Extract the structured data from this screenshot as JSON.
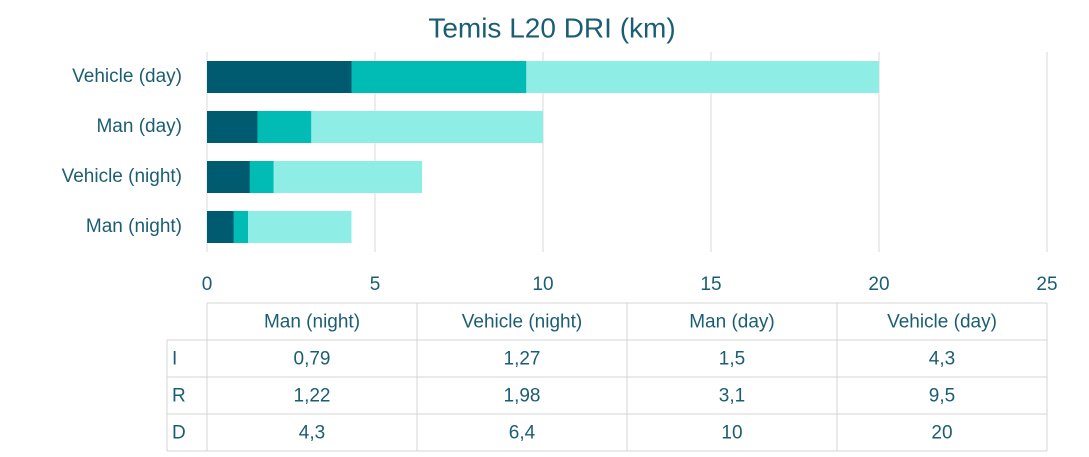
{
  "chart_data": {
    "type": "bar",
    "orientation": "horizontal",
    "overlap": true,
    "title": "Temis L20 DRI (km)",
    "categories": [
      "Man (night)",
      "Vehicle (night)",
      "Man (day)",
      "Vehicle (day)"
    ],
    "series": [
      {
        "name": "I",
        "color": "#005a70",
        "values": [
          0.79,
          1.27,
          1.5,
          4.3
        ],
        "value_labels": [
          "0,79",
          "1,27",
          "1,5",
          "4,3"
        ]
      },
      {
        "name": "R",
        "color": "#00bcb4",
        "values": [
          1.22,
          1.98,
          3.1,
          9.5
        ],
        "value_labels": [
          "1,22",
          "1,98",
          "3,1",
          "9,5"
        ]
      },
      {
        "name": "D",
        "color": "#8eede5",
        "values": [
          4.3,
          6.4,
          10,
          20
        ],
        "value_labels": [
          "4,3",
          "6,4",
          "10",
          "20"
        ]
      }
    ],
    "xlim": [
      0,
      25
    ],
    "xticks": [
      0,
      5,
      10,
      15,
      20,
      25
    ],
    "grid": true,
    "data_table": true
  }
}
